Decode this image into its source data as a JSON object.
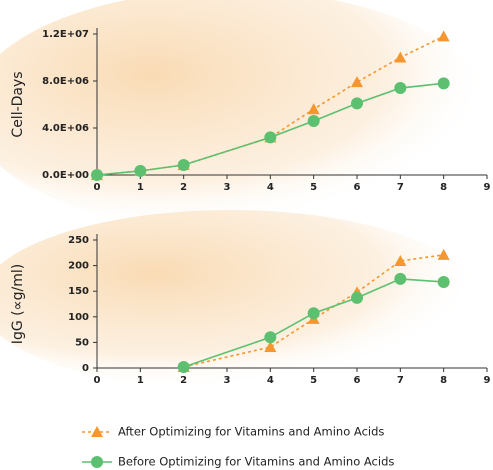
{
  "chart_data": [
    {
      "type": "line",
      "y_label": "Cell-Days",
      "xlim": [
        0,
        9
      ],
      "xticks": [
        0,
        1,
        2,
        3,
        4,
        5,
        6,
        7,
        8,
        9
      ],
      "ylim": [
        0,
        12000000
      ],
      "yticks": [
        {
          "value": 0,
          "label": "0.0E+00"
        },
        {
          "value": 4000000,
          "label": "4.0E+06"
        },
        {
          "value": 8000000,
          "label": "8.0E+06"
        },
        {
          "value": 12000000,
          "label": "1.2E+07"
        }
      ],
      "series": [
        {
          "color": "#f5972e",
          "marker": "triangle",
          "dashed": true,
          "x": [
            0,
            1,
            2,
            4,
            5,
            6,
            7,
            8
          ],
          "values": [
            0,
            350000,
            850000,
            3200000,
            5600000,
            7900000,
            10000000,
            11800000
          ]
        },
        {
          "color": "#5cc070",
          "marker": "circle",
          "dashed": false,
          "x": [
            0,
            1,
            2,
            4,
            5,
            6,
            7,
            8
          ],
          "values": [
            0,
            350000,
            850000,
            3200000,
            4600000,
            6100000,
            7400000,
            7800000
          ]
        }
      ]
    },
    {
      "type": "line",
      "y_label": "IgG (∝g/ml)",
      "xlim": [
        0,
        9
      ],
      "xticks": [
        0,
        1,
        2,
        3,
        4,
        5,
        6,
        7,
        8,
        9
      ],
      "ylim": [
        0,
        250
      ],
      "yticks": [
        0,
        50,
        100,
        150,
        200,
        250
      ],
      "series": [
        {
          "name": "After Optimizing for Vitamins and Amino Acids",
          "color": "#f5972e",
          "marker": "triangle",
          "dashed": true,
          "x": [
            2,
            4,
            5,
            6,
            7,
            8
          ],
          "values": [
            2,
            41,
            96,
            148,
            209,
            221
          ]
        },
        {
          "name": "Before Optimizing for Vitamins and Amino Acids",
          "color": "#5cc070",
          "marker": "circle",
          "dashed": false,
          "x": [
            2,
            4,
            5,
            6,
            7,
            8
          ],
          "values": [
            2,
            60,
            107,
            137,
            174,
            168
          ]
        }
      ]
    }
  ]
}
